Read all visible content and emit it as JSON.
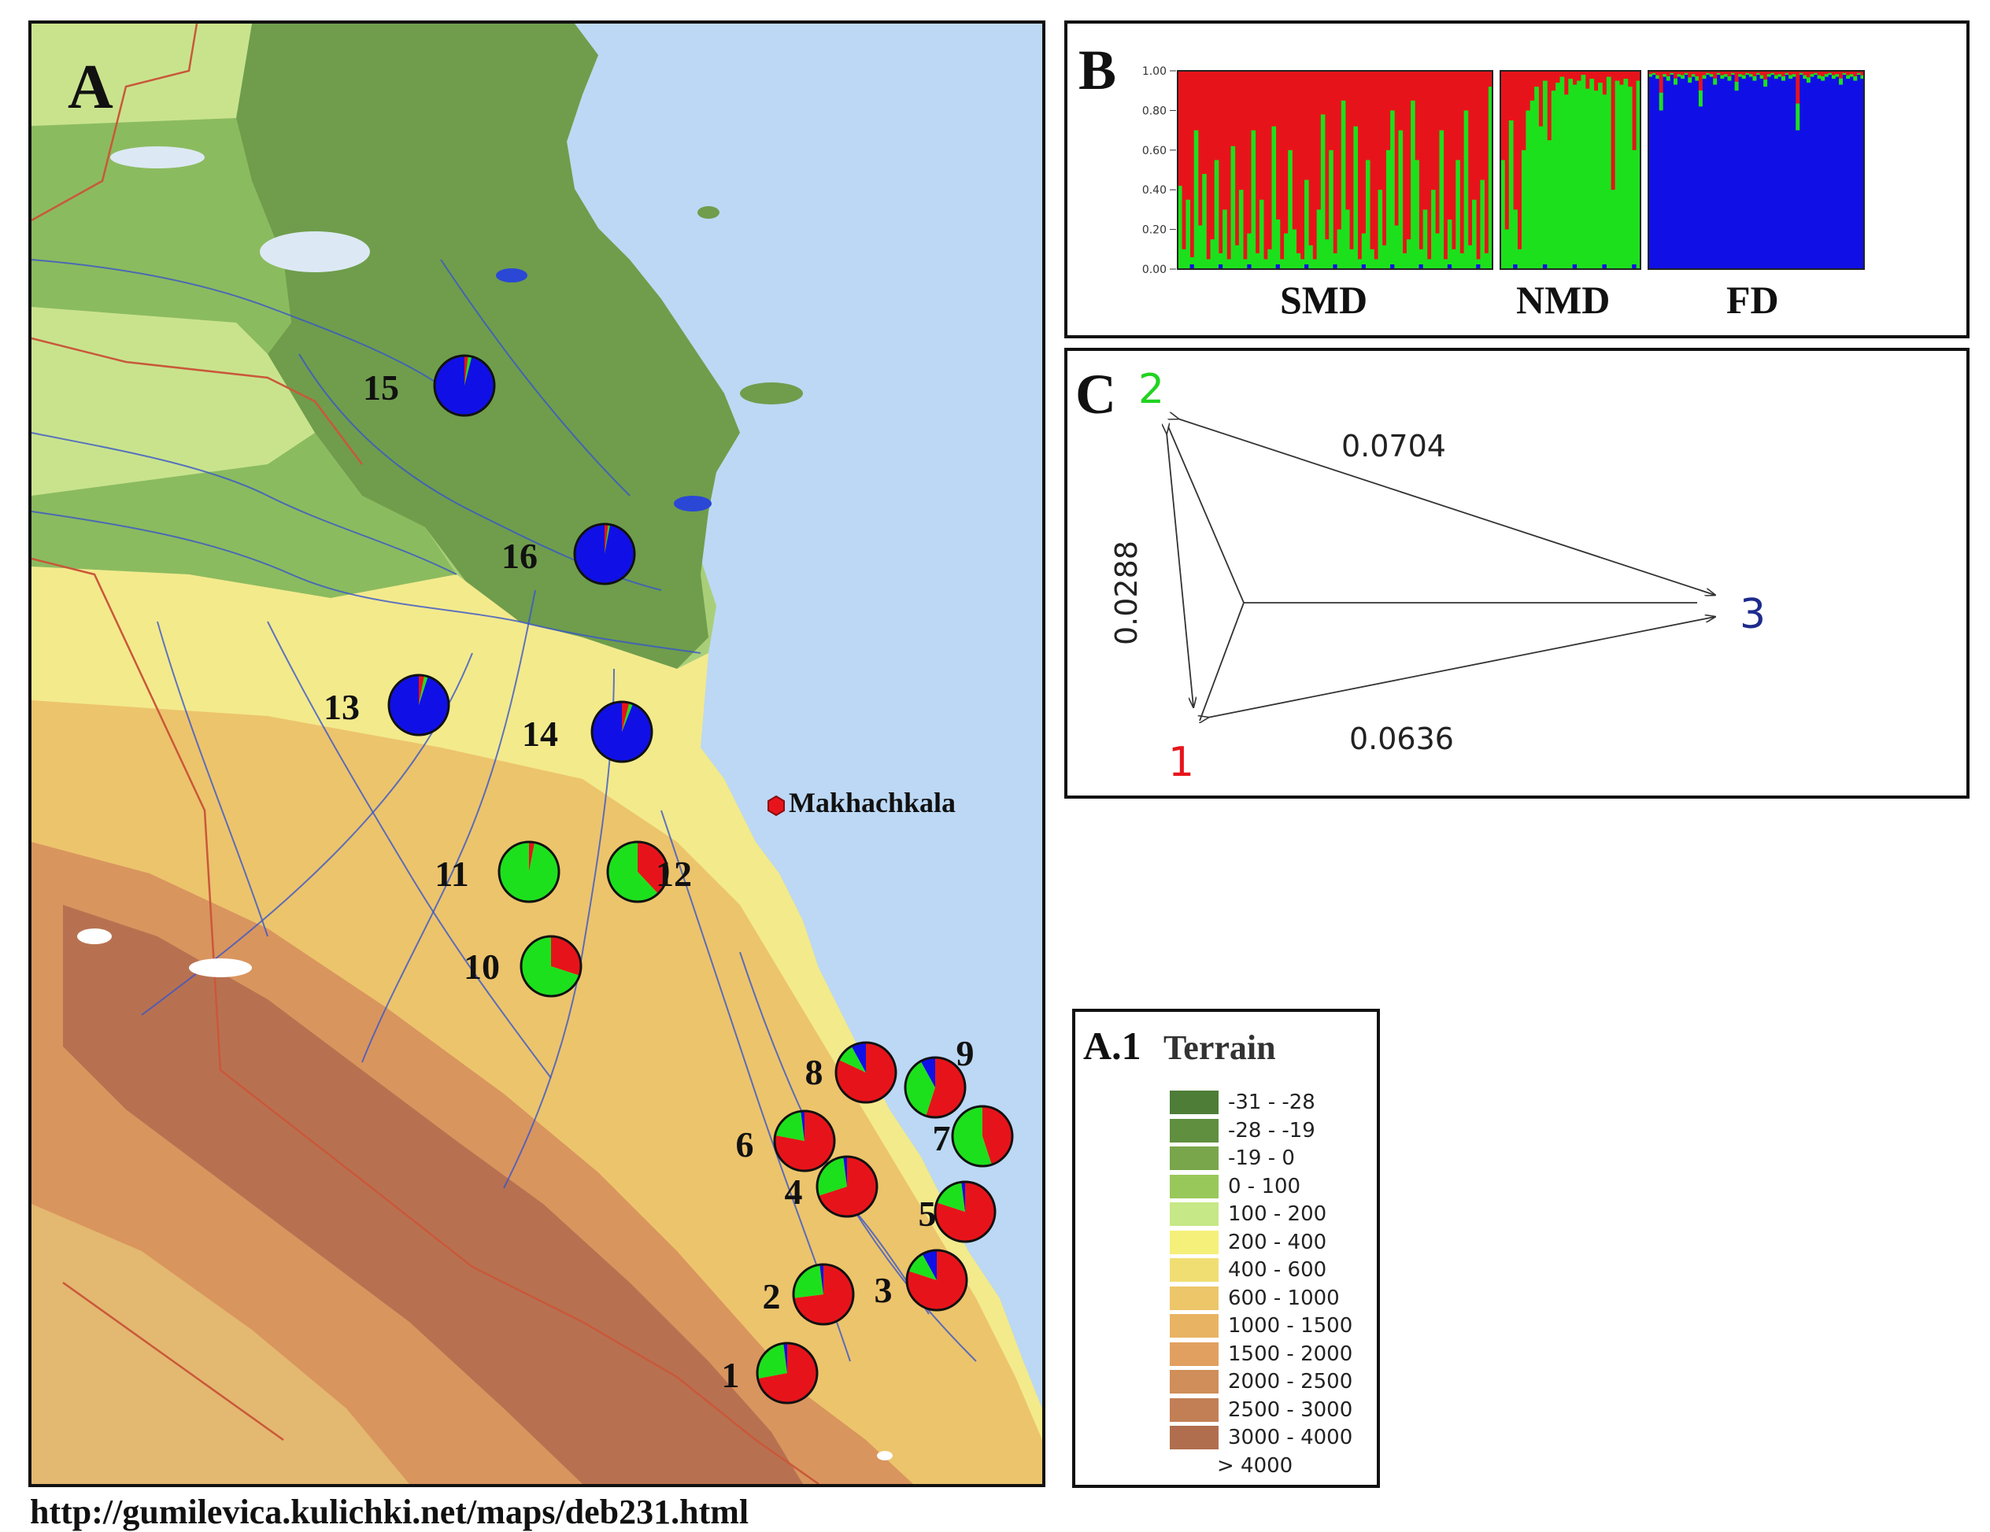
{
  "figure_letters": {
    "A": "A",
    "B": "B",
    "C": "C"
  },
  "map": {
    "city": "Makhachkala",
    "city_color": "#e8141c",
    "site_colors": {
      "cluster1": "#e6141a",
      "cluster2": "#1de01d",
      "cluster3": "#1010e6"
    },
    "sites": [
      {
        "label": "1",
        "proportions": [
          0.72,
          0.26,
          0.02
        ]
      },
      {
        "label": "2",
        "proportions": [
          0.73,
          0.25,
          0.02
        ]
      },
      {
        "label": "3",
        "proportions": [
          0.8,
          0.12,
          0.08
        ]
      },
      {
        "label": "4",
        "proportions": [
          0.7,
          0.28,
          0.02
        ]
      },
      {
        "label": "5",
        "proportions": [
          0.8,
          0.18,
          0.02
        ]
      },
      {
        "label": "6",
        "proportions": [
          0.78,
          0.2,
          0.02
        ]
      },
      {
        "label": "7",
        "proportions": [
          0.45,
          0.55,
          0.0
        ]
      },
      {
        "label": "8",
        "proportions": [
          0.82,
          0.1,
          0.08
        ]
      },
      {
        "label": "9",
        "proportions": [
          0.55,
          0.37,
          0.08
        ]
      },
      {
        "label": "10",
        "proportions": [
          0.3,
          0.7,
          0.0
        ]
      },
      {
        "label": "11",
        "proportions": [
          0.03,
          0.97,
          0.0
        ]
      },
      {
        "label": "12",
        "proportions": [
          0.38,
          0.62,
          0.0
        ]
      },
      {
        "label": "13",
        "proportions": [
          0.03,
          0.02,
          0.95
        ]
      },
      {
        "label": "14",
        "proportions": [
          0.04,
          0.02,
          0.94
        ]
      },
      {
        "label": "15",
        "proportions": [
          0.02,
          0.02,
          0.96
        ]
      },
      {
        "label": "16",
        "proportions": [
          0.02,
          0.01,
          0.97
        ]
      }
    ]
  },
  "legend": {
    "prefix": "A.1",
    "title": "Terrain",
    "items": [
      {
        "label": "-31 - -28",
        "color": "#4e7d37"
      },
      {
        "label": "-28 - -19",
        "color": "#5f8f3f"
      },
      {
        "label": "-19 - 0",
        "color": "#79a64b"
      },
      {
        "label": "0 - 100",
        "color": "#98c85a"
      },
      {
        "label": "100 - 200",
        "color": "#c6e886"
      },
      {
        "label": "200 - 400",
        "color": "#f5f07a"
      },
      {
        "label": "400 - 600",
        "color": "#f1de73"
      },
      {
        "label": "600 - 1000",
        "color": "#edc66a"
      },
      {
        "label": "1000 - 1500",
        "color": "#e8b464"
      },
      {
        "label": "1500 - 2000",
        "color": "#e1a060"
      },
      {
        "label": "2000 - 2500",
        "color": "#cf8e5a"
      },
      {
        "label": "2500 - 3000",
        "color": "#c27f56"
      },
      {
        "label": "3000 - 4000",
        "color": "#b06e4e"
      },
      {
        "label": "> 4000",
        "color": "#ffffff"
      }
    ]
  },
  "chart_data": [
    {
      "type": "stacked-bar",
      "title": "",
      "y_ticks": [
        "1.00",
        "0.80",
        "0.60",
        "0.40",
        "0.20",
        "0.00"
      ],
      "ylim": [
        0,
        1
      ],
      "groups": [
        {
          "label": "SMD",
          "green": [
            0.42,
            0.1,
            0.35,
            0.06,
            0.7,
            0.22,
            0.48,
            0.05,
            0.15,
            0.55,
            0.08,
            0.3,
            0.05,
            0.62,
            0.12,
            0.4,
            0.05,
            0.18,
            0.7,
            0.08,
            0.35,
            0.05,
            0.1,
            0.72,
            0.25,
            0.05,
            0.18,
            0.6,
            0.2,
            0.08,
            0.05,
            0.45,
            0.12,
            0.05,
            0.3,
            0.78,
            0.15,
            0.6,
            0.08,
            0.2,
            0.85,
            0.3,
            0.1,
            0.72,
            0.05,
            0.18,
            0.55,
            0.1,
            0.05,
            0.4,
            0.12,
            0.6,
            0.8,
            0.22,
            0.7,
            0.08,
            0.15,
            0.85,
            0.55,
            0.1,
            0.3,
            0.05,
            0.4,
            0.18,
            0.7,
            0.05,
            0.25,
            0.1,
            0.55,
            0.08,
            0.8,
            0.12,
            0.35,
            0.05,
            0.45,
            0.08,
            0.92
          ]
        },
        {
          "label": "NMD",
          "green": [
            0.55,
            0.2,
            0.75,
            0.3,
            0.1,
            0.6,
            0.8,
            0.85,
            0.92,
            0.72,
            0.95,
            0.65,
            0.9,
            0.94,
            0.97,
            0.88,
            0.96,
            0.93,
            0.95,
            0.98,
            0.91,
            0.96,
            0.9,
            0.94,
            0.88,
            0.97,
            0.4,
            0.95,
            0.93,
            0.96,
            0.92,
            0.6,
            0.95
          ]
        },
        {
          "label": "FD",
          "blue": [
            0.97,
            0.98,
            0.96,
            0.8,
            0.97,
            0.95,
            0.98,
            0.93,
            0.97,
            0.96,
            0.98,
            0.94,
            0.97,
            0.95,
            0.82,
            0.96,
            0.98,
            0.97,
            0.93,
            0.98,
            0.96,
            0.97,
            0.95,
            0.98,
            0.9,
            0.97,
            0.96,
            0.98,
            0.97,
            0.95,
            0.98,
            0.96,
            0.92,
            0.97,
            0.98,
            0.96,
            0.97,
            0.95,
            0.98,
            0.96,
            0.97,
            0.7,
            0.98,
            0.96,
            0.94,
            0.97,
            0.98,
            0.96,
            0.95,
            0.97,
            0.98,
            0.96,
            0.97,
            0.93,
            0.98,
            0.96,
            0.97,
            0.95,
            0.98,
            0.96
          ]
        }
      ]
    },
    {
      "type": "network",
      "nodes": [
        {
          "label": "1",
          "color": "#e8141c"
        },
        {
          "label": "2",
          "color": "#21d321"
        },
        {
          "label": "3",
          "color": "#1e2a8c"
        }
      ],
      "edges": [
        {
          "from": "2",
          "to": "3",
          "value": "0.0704"
        },
        {
          "from": "1",
          "to": "2",
          "value": "0.0288"
        },
        {
          "from": "1",
          "to": "3",
          "value": "0.0636"
        }
      ]
    }
  ],
  "footer": {
    "url": "http://gumilevica.kulichki.net/maps/deb231.html"
  }
}
